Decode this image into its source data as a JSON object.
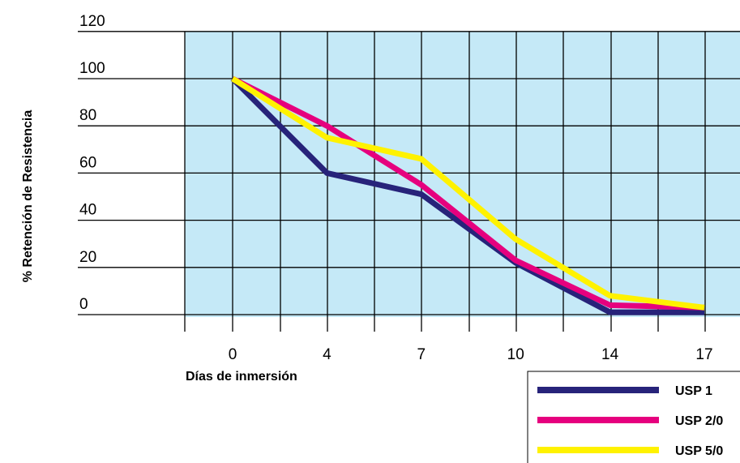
{
  "chart_data": {
    "type": "line",
    "title": "",
    "xlabel": "Días de inmersión",
    "ylabel": "% Retención de Resistencia",
    "x": [
      0,
      4,
      7,
      10,
      14,
      17
    ],
    "x_tick_labels": [
      "0",
      "4",
      "7",
      "10",
      "14",
      "17"
    ],
    "y_tick_labels": [
      "0",
      "20",
      "40",
      "60",
      "80",
      "100",
      "120"
    ],
    "ylim": [
      0,
      120
    ],
    "grid": true,
    "legend_position": "bottom-right",
    "plot_background": "#c5e9f7",
    "series": [
      {
        "name": "USP 1",
        "color": "#27237a",
        "values": [
          100,
          60,
          51,
          22,
          1,
          1
        ]
      },
      {
        "name": "USP 2/0",
        "color": "#e6007e",
        "values": [
          100,
          80,
          55,
          23,
          4,
          3
        ]
      },
      {
        "name": "USP 5/0",
        "color": "#fff200",
        "values": [
          100,
          75,
          66,
          32,
          8,
          3
        ]
      }
    ]
  }
}
